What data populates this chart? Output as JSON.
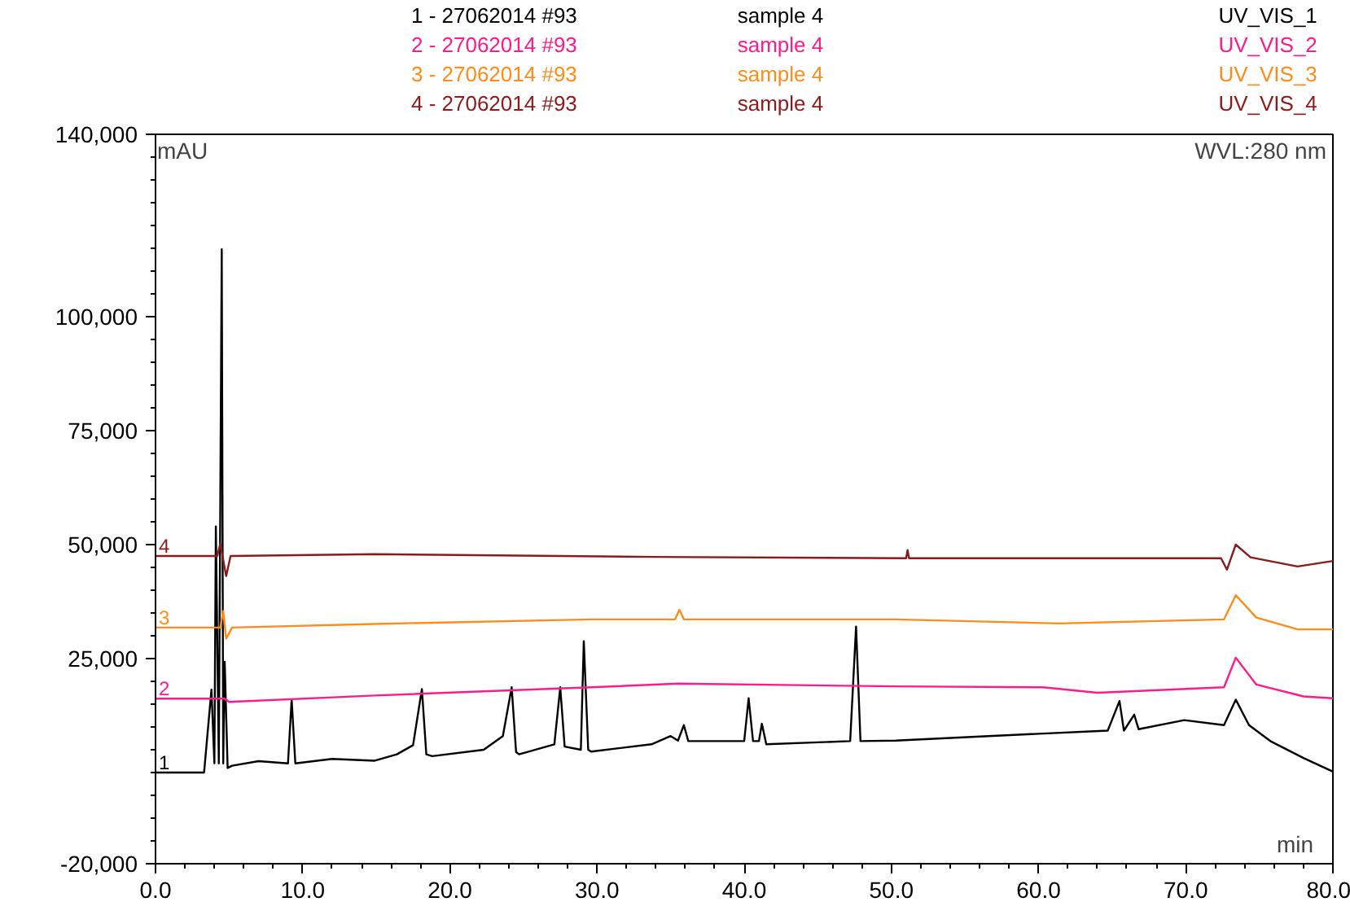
{
  "chart_data": {
    "type": "line",
    "xlabel": "min",
    "ylabel": "mAU",
    "annotations": [
      "1 - 27062014 #93",
      "sample 4",
      "UV_VIS_1",
      "2 - 27062014 #93",
      "sample 4",
      "UV_VIS_2",
      "3 - 27062014 #93",
      "sample 4",
      "UV_VIS_3",
      "4 - 27062014 #93",
      "sample 4",
      "UV_VIS_4",
      "WVL:280 nm"
    ],
    "xlim": [
      0,
      80
    ],
    "ylim": [
      -20000,
      140000
    ],
    "xticks": [
      {
        "value": 0,
        "label": "0.0"
      },
      {
        "value": 10,
        "label": "10.0"
      },
      {
        "value": 20,
        "label": "20.0"
      },
      {
        "value": 30,
        "label": "30.0"
      },
      {
        "value": 40,
        "label": "40.0"
      },
      {
        "value": 50,
        "label": "50.0"
      },
      {
        "value": 60,
        "label": "60.0"
      },
      {
        "value": 70,
        "label": "70.0"
      },
      {
        "value": 80,
        "label": "80.0"
      }
    ],
    "yticks": [
      {
        "value": -20000,
        "label": "-20,000"
      },
      {
        "value": 25000,
        "label": "25,000"
      },
      {
        "value": 50000,
        "label": "50,000"
      },
      {
        "value": 75000,
        "label": "75,000"
      },
      {
        "value": 100000,
        "label": "100,000"
      },
      {
        "value": 140000,
        "label": "140,000"
      }
    ],
    "grid": false,
    "legend": false,
    "line_style": "solid",
    "marker": "none",
    "series": [
      {
        "name": "1",
        "color": "#000000",
        "x": [
          0,
          3.3,
          3.8,
          4.0,
          4.1,
          4.3,
          4.5,
          4.6,
          4.7,
          4.9,
          5.2,
          7.0,
          9.0,
          9.25,
          9.5,
          12.0,
          14.9,
          16.4,
          17.5,
          18.1,
          18.4,
          18.8,
          22.3,
          23.6,
          24.2,
          24.5,
          24.7,
          27.1,
          27.5,
          27.8,
          28.9,
          29.1,
          29.4,
          29.6,
          33.7,
          35.0,
          35.5,
          35.9,
          36.2,
          40.0,
          40.3,
          40.6,
          41.0,
          41.2,
          41.5,
          47.2,
          47.6,
          47.9,
          50.3,
          56.6,
          64.7,
          65.5,
          65.8,
          66.5,
          66.8,
          69.9,
          72.6,
          73.4,
          74.3,
          75.8,
          78.0,
          80.0
        ],
        "values": [
          0,
          0,
          18200,
          2000,
          54000,
          2000,
          114800,
          2000,
          24300,
          1000,
          1500,
          2500,
          2000,
          16000,
          2000,
          3000,
          2600,
          4000,
          6000,
          18300,
          4000,
          3600,
          5000,
          8000,
          18700,
          4500,
          4000,
          6200,
          18700,
          5700,
          5000,
          28800,
          5000,
          4600,
          6200,
          8000,
          7000,
          10400,
          6900,
          6900,
          16300,
          6900,
          6900,
          10700,
          6200,
          6900,
          32000,
          6900,
          7000,
          8000,
          9200,
          15700,
          9200,
          12700,
          9500,
          11500,
          10400,
          16000,
          10400,
          6800,
          3200,
          200
        ]
      },
      {
        "name": "2",
        "color": "#ff1a8c",
        "x": [
          0,
          4.7,
          5.0,
          14.9,
          29.6,
          35.5,
          50.3,
          60.3,
          64.0,
          72.6,
          73.4,
          74.8,
          78.0,
          80.0
        ],
        "values": [
          16200,
          16200,
          15500,
          16900,
          18700,
          19500,
          18900,
          18700,
          17500,
          18700,
          25200,
          19300,
          16700,
          16300
        ]
      },
      {
        "name": "3",
        "color": "#ff8c1a",
        "x": [
          0,
          4.4,
          4.6,
          4.8,
          5.2,
          14.9,
          29.6,
          35.3,
          35.6,
          35.9,
          50.3,
          61.4,
          72.6,
          73.4,
          74.8,
          77.6,
          80.0
        ],
        "values": [
          31800,
          31800,
          35400,
          29400,
          31800,
          32600,
          33600,
          33600,
          35700,
          33600,
          33600,
          32700,
          33600,
          38900,
          34000,
          31400,
          31400
        ]
      },
      {
        "name": "4",
        "color": "#8b1a1a",
        "x": [
          0,
          4.2,
          4.4,
          4.8,
          5.1,
          14.9,
          33.9,
          51.0,
          51.1,
          51.2,
          72.4,
          72.8,
          73.4,
          74.4,
          77.6,
          80.0
        ],
        "values": [
          47500,
          47500,
          50200,
          43100,
          47500,
          47900,
          47300,
          47000,
          48800,
          47000,
          47000,
          44500,
          50000,
          47200,
          45200,
          46400
        ]
      }
    ]
  }
}
